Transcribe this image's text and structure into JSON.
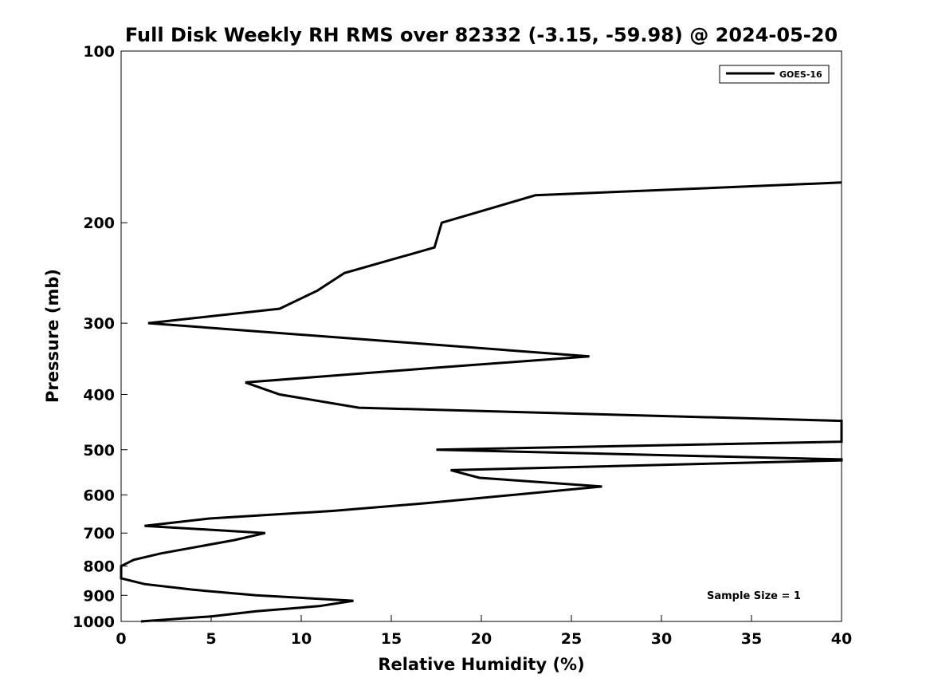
{
  "chart_data": {
    "type": "line",
    "title": "Full Disk Weekly RH RMS over 82332 (-3.15, -59.98) @ 2024-05-20",
    "xlabel": "Relative Humidity (%)",
    "ylabel": "Pressure (mb)",
    "xlim": [
      0,
      40
    ],
    "ylim": [
      100,
      1000
    ],
    "y_scale": "log",
    "y_reversed": true,
    "x_ticks": [
      0,
      5,
      10,
      15,
      20,
      25,
      30,
      35,
      40
    ],
    "y_ticks": [
      100,
      200,
      300,
      400,
      500,
      600,
      700,
      800,
      900,
      1000
    ],
    "grid": false,
    "legend_position": "top-right",
    "annotation": "Sample Size = 1",
    "series": [
      {
        "name": "GOES-16",
        "color": "#000000",
        "points": [
          [
            40.0,
            170
          ],
          [
            23.0,
            179
          ],
          [
            17.8,
            200
          ],
          [
            17.4,
            221
          ],
          [
            12.4,
            245
          ],
          [
            10.9,
            263
          ],
          [
            8.8,
            283
          ],
          [
            1.5,
            300
          ],
          [
            26.0,
            343
          ],
          [
            17.0,
            360
          ],
          [
            6.9,
            381
          ],
          [
            8.8,
            400
          ],
          [
            13.2,
            422
          ],
          [
            40.0,
            445
          ],
          [
            40.0,
            484
          ],
          [
            17.5,
            500
          ],
          [
            40.0,
            520
          ],
          [
            40.0,
            522
          ],
          [
            18.3,
            543
          ],
          [
            19.9,
            560
          ],
          [
            26.7,
            580
          ],
          [
            17.0,
            620
          ],
          [
            11.8,
            640
          ],
          [
            4.9,
            660
          ],
          [
            1.3,
            680
          ],
          [
            8.0,
            700
          ],
          [
            6.3,
            720
          ],
          [
            2.2,
            760
          ],
          [
            0.7,
            780
          ],
          [
            0.0,
            800
          ],
          [
            0.0,
            840
          ],
          [
            1.3,
            860
          ],
          [
            4.0,
            880
          ],
          [
            7.5,
            900
          ],
          [
            12.9,
            920
          ],
          [
            11.0,
            940
          ],
          [
            7.5,
            960
          ],
          [
            5.0,
            980
          ],
          [
            1.1,
            1000
          ]
        ]
      }
    ]
  }
}
